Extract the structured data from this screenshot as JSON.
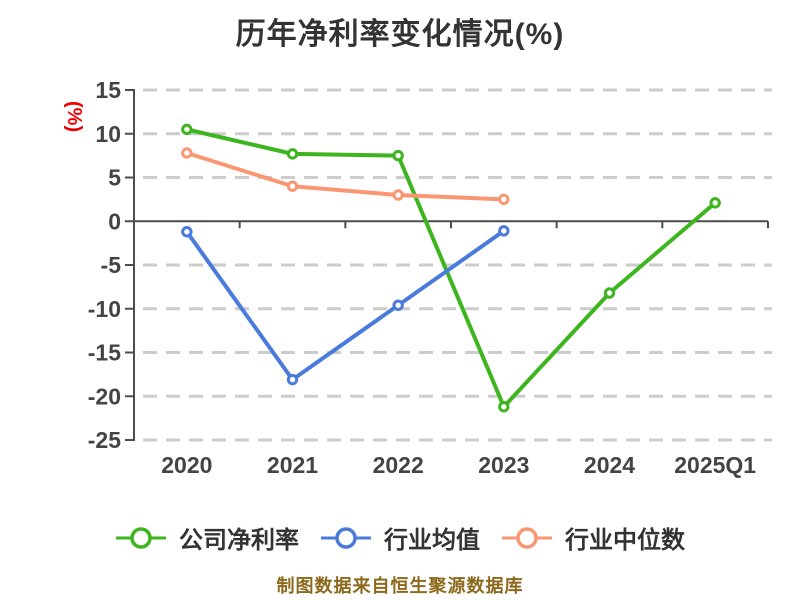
{
  "chart_data": {
    "type": "line",
    "title": "历年净利率变化情况(%)",
    "ylabel": "(%)",
    "categories": [
      "2020",
      "2021",
      "2022",
      "2023",
      "2024",
      "2025Q1"
    ],
    "series": [
      {
        "name": "公司净利率",
        "color": "#3db51e",
        "marker": "hollow-circle",
        "values": [
          10.5,
          7.7,
          7.5,
          -21.2,
          -8.2,
          2.1
        ]
      },
      {
        "name": "行业均值",
        "color": "#4a7bdc",
        "marker": "hollow-circle",
        "values": [
          -1.2,
          -18.1,
          -9.6,
          -1.1,
          null,
          null
        ]
      },
      {
        "name": "行业中位数",
        "color": "#fa9772",
        "marker": "hollow-circle",
        "values": [
          7.8,
          4.0,
          3.0,
          2.5,
          null,
          null
        ]
      }
    ],
    "y_ticks": [
      15,
      10,
      5,
      0,
      -5,
      -10,
      -15,
      -20,
      -25
    ],
    "ylim": [
      -25,
      15
    ],
    "grid": "horizontal-dashed",
    "x_axis_on_zero": true,
    "legend_position": "bottom"
  },
  "footer": {
    "text": "制图数据来自恒生聚源数据库"
  },
  "colors": {
    "background": "#ffffff",
    "title": "#333333",
    "tick_label": "#444444",
    "axis": "#4d4d4d",
    "grid": "#cccccc",
    "ylabel": "#ee0000",
    "legend_text": "#333333",
    "footer": "#8c691c"
  }
}
